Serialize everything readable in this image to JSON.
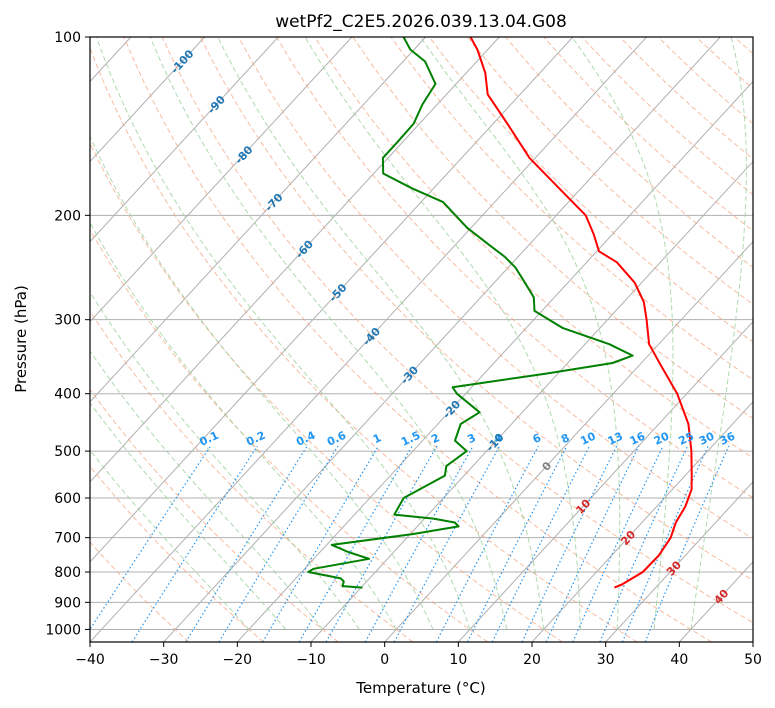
{
  "chart_data": {
    "type": "line",
    "subtype": "skew-t log-p diagram",
    "title": "wetPf2_C2E5.2026.039.13.04.G08",
    "xlabel": "Temperature (°C)",
    "ylabel": "Pressure (hPa)",
    "xlim": [
      -40,
      50
    ],
    "ylim_hpa": [
      1050,
      100
    ],
    "y_scale": "log",
    "grid": true,
    "x_ticks": [
      "−40",
      "−30",
      "−20",
      "−10",
      "0",
      "10",
      "20",
      "30",
      "40",
      "50"
    ],
    "y_ticks": [
      "100",
      "200",
      "300",
      "400",
      "500",
      "600",
      "700",
      "800",
      "900",
      "1000"
    ],
    "series": [
      {
        "color": "#ff0000",
        "points_temp_c_at_hpa": [
          [
            850,
            24.4
          ],
          [
            840,
            25.0
          ],
          [
            800,
            26.3
          ],
          [
            750,
            26.4
          ],
          [
            700,
            25.8
          ],
          [
            660,
            24.6
          ],
          [
            620,
            23.9
          ],
          [
            580,
            22.6
          ],
          [
            550,
            20.9
          ],
          [
            500,
            17.8
          ],
          [
            450,
            14.0
          ],
          [
            400,
            8.7
          ],
          [
            360,
            3.2
          ],
          [
            330,
            -1.3
          ],
          [
            300,
            -4.7
          ],
          [
            280,
            -7.3
          ],
          [
            260,
            -10.9
          ],
          [
            240,
            -15.9
          ],
          [
            230,
            -19.7
          ],
          [
            215,
            -22.6
          ],
          [
            200,
            -26.0
          ],
          [
            180,
            -33.0
          ],
          [
            160,
            -40.8
          ],
          [
            140,
            -48.1
          ],
          [
            125,
            -54.4
          ],
          [
            115,
            -57.4
          ],
          [
            105,
            -61.4
          ],
          [
            100,
            -63.9
          ]
        ]
      },
      {
        "color": "#008000",
        "points_temp_c_at_hpa": [
          [
            850,
            -9.8
          ],
          [
            845,
            -12.7
          ],
          [
            830,
            -13.1
          ],
          [
            820,
            -13.9
          ],
          [
            800,
            -19.1
          ],
          [
            790,
            -18.8
          ],
          [
            760,
            -12.5
          ],
          [
            740,
            -16.2
          ],
          [
            720,
            -19.3
          ],
          [
            690,
            -9.6
          ],
          [
            670,
            -4.4
          ],
          [
            660,
            -5.4
          ],
          [
            650,
            -8.8
          ],
          [
            640,
            -14.6
          ],
          [
            600,
            -15.4
          ],
          [
            580,
            -14.3
          ],
          [
            550,
            -12.6
          ],
          [
            530,
            -13.6
          ],
          [
            500,
            -12.7
          ],
          [
            480,
            -15.6
          ],
          [
            450,
            -16.9
          ],
          [
            430,
            -15.8
          ],
          [
            400,
            -21.2
          ],
          [
            390,
            -22.6
          ],
          [
            370,
            -11.6
          ],
          [
            355,
            -3.9
          ],
          [
            345,
            -2.1
          ],
          [
            330,
            -6.7
          ],
          [
            310,
            -15.0
          ],
          [
            290,
            -21.0
          ],
          [
            275,
            -22.8
          ],
          [
            260,
            -25.8
          ],
          [
            245,
            -29.0
          ],
          [
            235,
            -31.8
          ],
          [
            225,
            -35.2
          ],
          [
            210,
            -40.5
          ],
          [
            190,
            -47.0
          ],
          [
            180,
            -53.0
          ],
          [
            170,
            -58.7
          ],
          [
            160,
            -60.7
          ],
          [
            150,
            -60.7
          ],
          [
            140,
            -60.8
          ],
          [
            130,
            -62.0
          ],
          [
            120,
            -62.8
          ],
          [
            110,
            -67.0
          ],
          [
            105,
            -70.5
          ],
          [
            100,
            -73.0
          ]
        ]
      }
    ],
    "isotherm_labels": {
      "color": "#1f77b4",
      "items": [
        {
          "text": "-100",
          "t": -100,
          "p": 110
        },
        {
          "text": "-90",
          "t": -90,
          "p": 130
        },
        {
          "text": "-80",
          "t": -80,
          "p": 158
        },
        {
          "text": "-70",
          "t": -70,
          "p": 190
        },
        {
          "text": "-60",
          "t": -60,
          "p": 228
        },
        {
          "text": "-50",
          "t": -50,
          "p": 270
        },
        {
          "text": "-40",
          "t": -40,
          "p": 320
        },
        {
          "text": "-30",
          "t": -30,
          "p": 372
        },
        {
          "text": "-20",
          "t": -20,
          "p": 425
        },
        {
          "text": "-10",
          "t": -10,
          "p": 483
        }
      ]
    },
    "mixing_ratio_labels": {
      "color": "#2196f3",
      "label_pressure": 490,
      "values": [
        "0.1",
        "0.2",
        "0.4",
        "0.6",
        "1",
        "1.5",
        "2",
        "3",
        "4",
        "6",
        "8",
        "10",
        "13",
        "16",
        "20",
        "25",
        "30",
        "36"
      ]
    },
    "isotherm_labels_warm": {
      "color": "#d62728",
      "items": [
        {
          "text": "0",
          "t": 0,
          "p": 530,
          "color": "#808080"
        },
        {
          "text": "10",
          "t": 10,
          "p": 620
        },
        {
          "text": "20",
          "t": 20,
          "p": 700
        },
        {
          "text": "30",
          "t": 30,
          "p": 788
        },
        {
          "text": "40",
          "t": 40,
          "p": 880
        }
      ]
    }
  }
}
